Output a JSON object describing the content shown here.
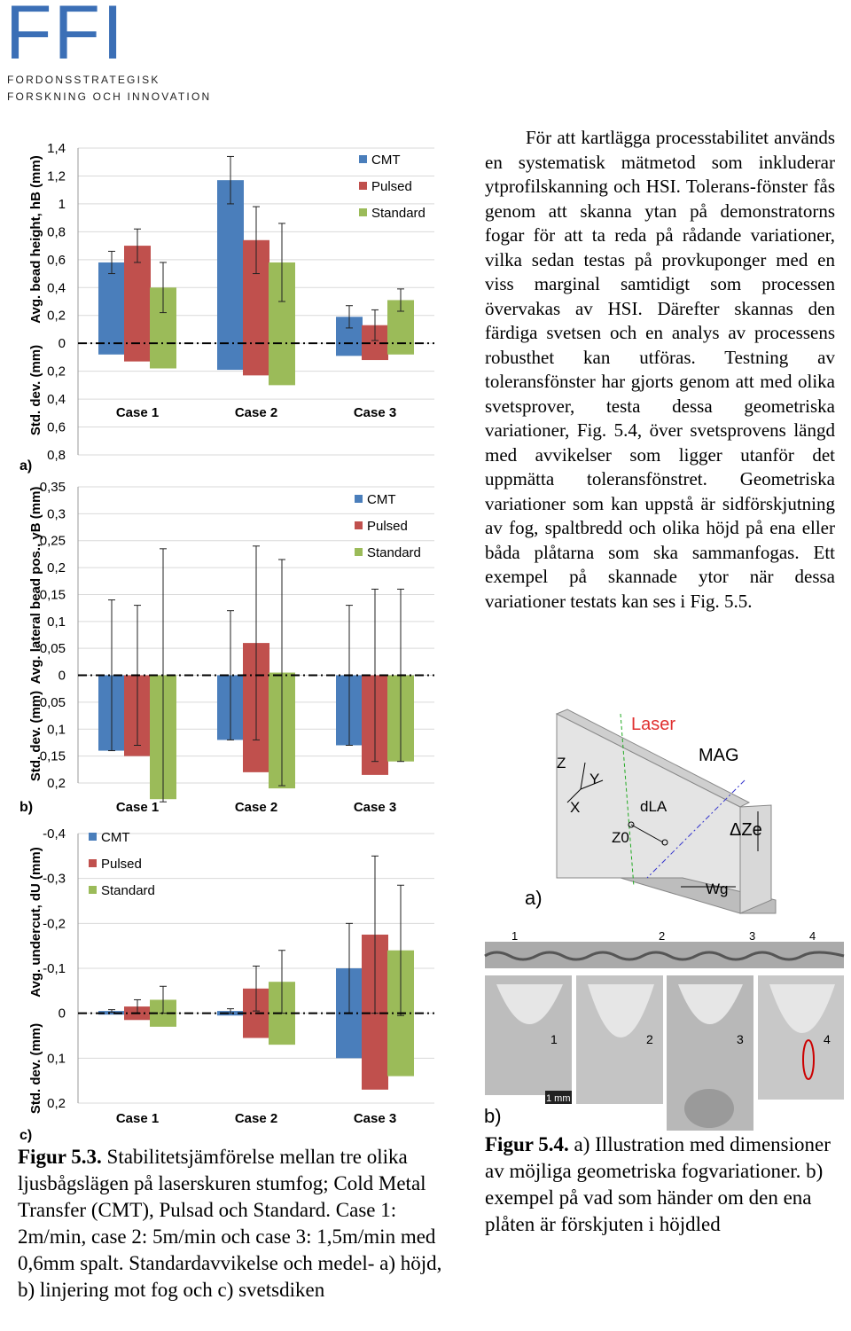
{
  "header": {
    "logo": "FFI",
    "line1": "FORDONSSTRATEGISK",
    "line2": "FORSKNING OCH INNOVATION"
  },
  "body_text": "För att kartlägga processtabilitet används en systematisk mätmetod som inkluderar ytprofilskanning och HSI. Tolerans-fönster fås genom att skanna ytan på demonstratorns fogar för att ta reda på rådande variationer, vilka sedan testas på provkuponger med en viss marginal samtidigt som processen övervakas av HSI. Därefter skannas den färdiga svetsen och en analys av processens robusthet kan utföras. Testning av toleransfönster har gjorts genom att med olika svetsprover, testa dessa geometriska variationer, Fig. 5.4, över svetsprovens längd med avvikelser som ligger utanför det uppmätta toleransfönstret. Geometriska variationer som kan uppstå är sidförskjutning av fog, spaltbredd och olika höjd på ena eller båda plåtarna som ska sammanfogas. Ett exempel på skannade ytor när dessa variationer testats kan ses i Fig. 5.5.",
  "chart_data": [
    {
      "type": "bar",
      "panel_label": "a)",
      "y_label": "Avg. bead height, hB (mm)",
      "std_label": "Std. dev. (mm)",
      "categories": [
        "Case 1",
        "Case 2",
        "Case 3"
      ],
      "series": [
        {
          "name": "CMT",
          "color": "#4a7ebb",
          "values": [
            0.58,
            1.17,
            0.19
          ],
          "std": [
            0.08,
            0.19,
            0.09
          ],
          "errors": [
            0.08,
            0.17,
            0.08
          ]
        },
        {
          "name": "Pulsed",
          "color": "#c0504d",
          "values": [
            0.7,
            0.74,
            0.13
          ],
          "std": [
            0.13,
            0.23,
            0.12
          ],
          "errors": [
            0.12,
            0.24,
            0.11
          ]
        },
        {
          "name": "Standard",
          "color": "#9bbb59",
          "values": [
            0.4,
            0.58,
            0.31
          ],
          "std": [
            0.18,
            0.3,
            0.08
          ],
          "errors": [
            0.18,
            0.28,
            0.08
          ]
        }
      ],
      "ylim": [
        -0.8,
        1.4
      ],
      "y_inverted": false,
      "yticks": [
        {
          "value": 1.4,
          "label": "1,4"
        },
        {
          "value": 1.2,
          "label": "1,2"
        },
        1,
        {
          "value": 0.8,
          "label": "0,8"
        },
        {
          "value": 0.6,
          "label": "0,6"
        },
        {
          "value": 0.4,
          "label": "0,4"
        },
        {
          "value": 0.2,
          "label": "0,2"
        },
        0,
        {
          "value": -0.2,
          "label": "0,2"
        },
        {
          "value": -0.4,
          "label": "0,4"
        },
        {
          "value": -0.6,
          "label": "0,6"
        },
        {
          "value": -0.8,
          "label": "0,8"
        }
      ],
      "grid": true,
      "legend": "upper right"
    },
    {
      "type": "bar",
      "panel_label": "b)",
      "y_label": "Avg. lateral bead pos., yB (mm)",
      "std_label": "Std. dev. (mm)",
      "categories": [
        "Case 1",
        "Case 2",
        "Case 3"
      ],
      "series": [
        {
          "name": "CMT",
          "color": "#4a7ebb",
          "values": [
            0,
            0,
            0
          ],
          "std": [
            0.14,
            0.12,
            0.13
          ],
          "errors": [
            0.14,
            0.12,
            0.13
          ]
        },
        {
          "name": "Pulsed",
          "color": "#c0504d",
          "values": [
            0,
            0.06,
            0
          ],
          "std": [
            0.15,
            0.18,
            0.185
          ],
          "errors": [
            0.13,
            0.18,
            0.16
          ]
        },
        {
          "name": "Standard",
          "color": "#9bbb59",
          "values": [
            0,
            0.005,
            0
          ],
          "std": [
            0.23,
            0.21,
            0.16
          ],
          "errors": [
            0.235,
            0.21,
            0.16
          ]
        }
      ],
      "ylim": [
        -0.2,
        0.35
      ],
      "y_inverted": false,
      "yticks": [
        {
          "value": 0.35,
          "label": "0,35"
        },
        {
          "value": 0.3,
          "label": "0,3"
        },
        {
          "value": 0.25,
          "label": "0,25"
        },
        {
          "value": 0.2,
          "label": "0,2"
        },
        {
          "value": 0.15,
          "label": "0,15"
        },
        {
          "value": 0.1,
          "label": "0,1"
        },
        {
          "value": 0.05,
          "label": "0,05"
        },
        0,
        {
          "value": -0.05,
          "label": "0,05"
        },
        {
          "value": -0.1,
          "label": "0,1"
        },
        {
          "value": -0.15,
          "label": "0,15"
        },
        {
          "value": -0.2,
          "label": "0,2"
        }
      ],
      "grid": true,
      "legend": "upper right"
    },
    {
      "type": "bar",
      "panel_label": "c)",
      "y_label": "Avg. undercut, dU (mm)",
      "std_label": "Std. dev. (mm)",
      "categories": [
        "Case 1",
        "Case 2",
        "Case 3"
      ],
      "series": [
        {
          "name": "CMT",
          "color": "#4a7ebb",
          "values": [
            -0.005,
            -0.005,
            -0.1
          ],
          "std": [
            0.003,
            0.005,
            0.1
          ],
          "errors": [
            0.003,
            0.005,
            0.1
          ]
        },
        {
          "name": "Pulsed",
          "color": "#c0504d",
          "values": [
            -0.015,
            -0.055,
            -0.175
          ],
          "std": [
            0.015,
            0.055,
            0.17
          ],
          "errors": [
            0.015,
            0.05,
            0.175
          ]
        },
        {
          "name": "Standard",
          "color": "#9bbb59",
          "values": [
            -0.03,
            -0.07,
            -0.14
          ],
          "std": [
            0.03,
            0.07,
            0.14
          ],
          "errors": [
            0.03,
            0.07,
            0.145
          ]
        }
      ],
      "ylim": [
        -0.4,
        0.2
      ],
      "y_inverted": true,
      "yticks": [
        {
          "value": -0.4,
          "label": "-0,4"
        },
        {
          "value": -0.3,
          "label": "-0,3"
        },
        {
          "value": -0.2,
          "label": "-0,2"
        },
        {
          "value": -0.1,
          "label": "-0,1"
        },
        0,
        {
          "value": 0.1,
          "label": "0,1"
        },
        {
          "value": 0.2,
          "label": "0,2"
        }
      ],
      "grid": true,
      "legend": "upper left"
    }
  ],
  "figure_5_3": {
    "caption_label": "Figur 5.3.",
    "caption_text": "Stabilitetsjämförelse mellan tre olika ljusbågslägen på laserskuren stumfog; Cold Metal Transfer (CMT), Pulsad och Standard. Case 1: 2m/min, case 2: 5m/min och case 3: 1,5m/min med 0,6mm spalt. Standardavvikelse och medel- a) höjd, b) linjering mot fog och c) svetsdiken"
  },
  "figure_5_4": {
    "laser": "Laser",
    "mag": "MAG",
    "z": "Z",
    "y": "Y",
    "x": "X",
    "d_la": "dLA",
    "z0": "Z0",
    "delta_ze": "ΔZe",
    "wg": "Wg",
    "panel_a": "a)",
    "panel_b": "b)",
    "strip_marks": [
      "1",
      "2",
      "3",
      "4"
    ],
    "photo_labels": [
      "1",
      "2",
      "3",
      "4"
    ],
    "scale": "1 mm",
    "caption_label": "Figur 5.4.",
    "caption_text": "a) Illustration med dimensioner av möjliga geometriska fogvariationer. b) exempel på vad som händer om den ena plåten är förskjuten i höjdled"
  }
}
